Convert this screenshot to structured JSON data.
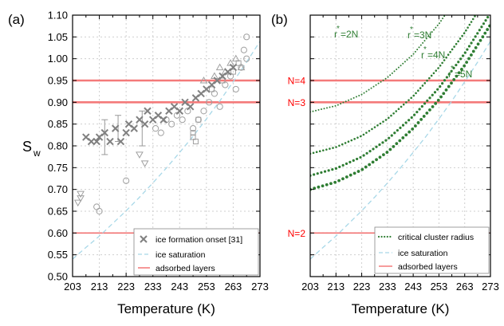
{
  "chart_data": [
    {
      "panel_label": "(a)",
      "type": "scatter",
      "xlabel": "Temperature (K)",
      "ylabel_main": "S",
      "ylabel_sub": "w",
      "xlim": [
        203,
        273
      ],
      "ylim": [
        0.5,
        1.1
      ],
      "xticks": [
        "203",
        "213",
        "223",
        "233",
        "243",
        "253",
        "263",
        "273"
      ],
      "yticks": [
        "0.50",
        "0.55",
        "0.60",
        "0.65",
        "0.70",
        "0.75",
        "0.80",
        "0.85",
        "0.90",
        "0.95",
        "1.00",
        "1.05",
        "1.10"
      ],
      "grid": true,
      "adsorbed_layers": [
        0.6,
        0.9,
        0.95
      ],
      "ice_saturation": {
        "x": [
          203,
          208,
          213,
          218,
          223,
          228,
          233,
          238,
          243,
          248,
          253,
          258,
          263,
          268,
          273
        ],
        "y": [
          0.54,
          0.567,
          0.593,
          0.622,
          0.651,
          0.682,
          0.715,
          0.749,
          0.785,
          0.822,
          0.862,
          0.903,
          0.947,
          0.992,
          1.04
        ]
      },
      "crosses": [
        [
          208,
          0.82
        ],
        [
          210,
          0.81
        ],
        [
          212,
          0.81
        ],
        [
          213,
          0.82
        ],
        [
          215,
          0.83
        ],
        [
          217,
          0.81
        ],
        [
          219,
          0.84
        ],
        [
          221,
          0.81
        ],
        [
          223,
          0.83
        ],
        [
          224,
          0.85
        ],
        [
          226,
          0.84
        ],
        [
          228,
          0.86
        ],
        [
          230,
          0.85
        ],
        [
          231,
          0.88
        ],
        [
          233,
          0.86
        ],
        [
          235,
          0.87
        ],
        [
          237,
          0.86
        ],
        [
          239,
          0.88
        ],
        [
          241,
          0.89
        ],
        [
          243,
          0.88
        ],
        [
          245,
          0.9
        ],
        [
          247,
          0.89
        ],
        [
          249,
          0.91
        ],
        [
          251,
          0.92
        ],
        [
          253,
          0.93
        ],
        [
          255,
          0.94
        ],
        [
          257,
          0.95
        ],
        [
          259,
          0.96
        ],
        [
          261,
          0.97
        ],
        [
          263,
          0.98
        ]
      ],
      "circles": [
        [
          212,
          0.66
        ],
        [
          213,
          0.65
        ],
        [
          223,
          0.72
        ],
        [
          234,
          0.84
        ],
        [
          236,
          0.83
        ],
        [
          238,
          0.86
        ],
        [
          240,
          0.85
        ],
        [
          242,
          0.87
        ],
        [
          244,
          0.86
        ],
        [
          246,
          0.88
        ],
        [
          248,
          0.84
        ],
        [
          250,
          0.86
        ],
        [
          252,
          0.88
        ],
        [
          254,
          0.9
        ],
        [
          256,
          0.92
        ],
        [
          258,
          0.89
        ],
        [
          260,
          0.94
        ],
        [
          262,
          0.96
        ],
        [
          264,
          0.93
        ],
        [
          266,
          0.98
        ],
        [
          267,
          1.02
        ],
        [
          268,
          1.05
        ],
        [
          268,
          1.0
        ]
      ],
      "triangles_down": [
        [
          206,
          0.69
        ],
        [
          206,
          0.68
        ],
        [
          205,
          0.67
        ],
        [
          228,
          0.78
        ],
        [
          230,
          0.76
        ]
      ],
      "triangles_up": [
        [
          252,
          0.95
        ],
        [
          256,
          0.96
        ],
        [
          258,
          0.98
        ],
        [
          260,
          0.97
        ],
        [
          262,
          0.99
        ],
        [
          264,
          1.0
        ],
        [
          266,
          0.98
        ]
      ],
      "squares": [
        [
          248,
          0.83
        ],
        [
          248,
          0.82
        ],
        [
          249,
          0.81
        ],
        [
          250,
          0.86
        ],
        [
          255,
          0.93
        ],
        [
          259,
          0.95
        ],
        [
          263,
          0.97
        ],
        [
          265,
          0.99
        ]
      ],
      "error_bars": [
        [
          215,
          0.82,
          0.04
        ],
        [
          220,
          0.84,
          0.03
        ],
        [
          229,
          0.84,
          0.04
        ]
      ],
      "legend": [
        "ice formation onset [31]",
        "ice saturation",
        "adsorbed layers"
      ],
      "legend_position": "bottom-right"
    },
    {
      "panel_label": "(b)",
      "type": "line",
      "xlabel": "Temperature (K)",
      "xlim": [
        203,
        273
      ],
      "ylim": [
        0.5,
        1.1
      ],
      "xticks": [
        "203",
        "213",
        "223",
        "233",
        "243",
        "253",
        "263",
        "273"
      ],
      "grid": true,
      "adsorbed_layers": [
        {
          "y": 0.6,
          "label": "N=2"
        },
        {
          "y": 0.9,
          "label": "N=3"
        },
        {
          "y": 0.95,
          "label": "N=4"
        }
      ],
      "ice_saturation": {
        "x": [
          203,
          208,
          213,
          218,
          223,
          228,
          233,
          238,
          243,
          248,
          253,
          258,
          263,
          268,
          273
        ],
        "y": [
          0.54,
          0.567,
          0.593,
          0.622,
          0.651,
          0.682,
          0.715,
          0.749,
          0.785,
          0.822,
          0.862,
          0.903,
          0.947,
          0.992,
          1.04
        ]
      },
      "critical_radius_curves": [
        {
          "label_main": "r",
          "label_sup": "*",
          "label_rest": "=2N",
          "x": [
            203,
            213,
            223,
            233,
            243,
            253,
            263
          ],
          "y": [
            0.878,
            0.892,
            0.918,
            0.957,
            1.01,
            1.08,
            1.165
          ]
        },
        {
          "label_main": "r",
          "label_sup": "*",
          "label_rest": "=3N",
          "x": [
            203,
            213,
            223,
            233,
            243,
            253,
            263,
            273
          ],
          "y": [
            0.782,
            0.797,
            0.823,
            0.862,
            0.914,
            0.98,
            1.06,
            1.155
          ]
        },
        {
          "label_main": "r",
          "label_sup": "*",
          "label_rest": "=4N",
          "x": [
            203,
            213,
            223,
            233,
            243,
            253,
            263,
            273
          ],
          "y": [
            0.732,
            0.748,
            0.775,
            0.815,
            0.868,
            0.933,
            1.012,
            1.105
          ]
        },
        {
          "label_main": "r",
          "label_sup": "*",
          "label_rest": " =5N",
          "x": [
            203,
            213,
            223,
            233,
            243,
            253,
            263,
            273
          ],
          "y": [
            0.7,
            0.717,
            0.745,
            0.786,
            0.84,
            0.906,
            0.985,
            1.078
          ]
        }
      ],
      "legend": [
        "critical cluster radius",
        "ice saturation",
        "adsorbed layers"
      ],
      "legend_position": "bottom-right"
    }
  ],
  "colors": {
    "cross": "#808080",
    "marker_open": "#a0a0a0",
    "ice_saturation": "#a8d8e8",
    "adsorbed": "#f06060",
    "adsorbed_thick": "#f47a7a",
    "critical": "#2e7d32",
    "n_label": "#ff0000",
    "grid": "#cfcfcf"
  }
}
